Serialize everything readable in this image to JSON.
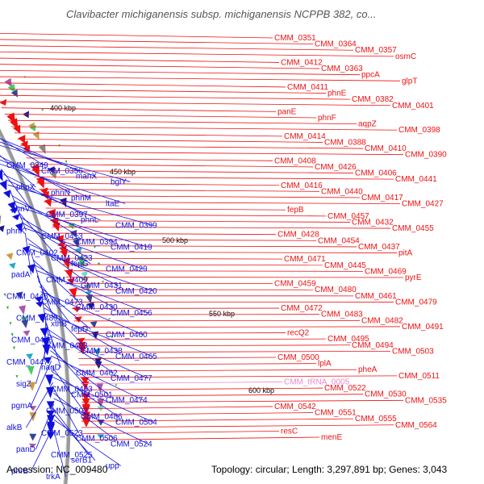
{
  "title": "Clavibacter michiganensis subsp. michiganensis NCPPB 382, co...",
  "footer": {
    "accession": "Accession: NC_009480",
    "topology": "Topology: circular; Length: 3,297,891 bp; Genes: 3,043"
  },
  "colors": {
    "forward": "#ee1111",
    "reverse": "#1111dd",
    "rna": "#ee88cc",
    "backbone": "#999999"
  },
  "kbp_labels": [
    "400 kbp",
    "450 kbp",
    "500 kbp",
    "550 kbp",
    "600 kbp"
  ],
  "right_labels": [
    {
      "t": "CMM_0351",
      "c": "r"
    },
    {
      "t": "CMM_0364",
      "c": "r"
    },
    {
      "t": "CMM_0357",
      "c": "r"
    },
    {
      "t": "osmC",
      "c": "r"
    },
    {
      "t": "CMM_0412",
      "c": "r"
    },
    {
      "t": "CMM_0363",
      "c": "r"
    },
    {
      "t": "ppcA",
      "c": "r"
    },
    {
      "t": "glpT",
      "c": "r"
    },
    {
      "t": "CMM_0411",
      "c": "r"
    },
    {
      "t": "phnE",
      "c": "r"
    },
    {
      "t": "CMM_0382",
      "c": "r"
    },
    {
      "t": "CMM_0401",
      "c": "r"
    },
    {
      "t": "panE",
      "c": "r"
    },
    {
      "t": "phnF",
      "c": "r"
    },
    {
      "t": "aqpZ",
      "c": "r"
    },
    {
      "t": "CMM_0398",
      "c": "r"
    },
    {
      "t": "CMM_0414",
      "c": "r"
    },
    {
      "t": "CMM_0388",
      "c": "r"
    },
    {
      "t": "CMM_0410",
      "c": "r"
    },
    {
      "t": "CMM_0390",
      "c": "r"
    },
    {
      "t": "CMM_0408",
      "c": "r"
    },
    {
      "t": "CMM_0426",
      "c": "r"
    },
    {
      "t": "CMM_0406",
      "c": "r"
    },
    {
      "t": "CMM_0441",
      "c": "r"
    },
    {
      "t": "CMM_0416",
      "c": "r"
    },
    {
      "t": "CMM_0440",
      "c": "r"
    },
    {
      "t": "CMM_0417",
      "c": "r"
    },
    {
      "t": "CMM_0427",
      "c": "r"
    },
    {
      "t": "fepB",
      "c": "r"
    },
    {
      "t": "CMM_0457",
      "c": "r"
    },
    {
      "t": "CMM_0432",
      "c": "r"
    },
    {
      "t": "CMM_0455",
      "c": "r"
    },
    {
      "t": "CMM_0428",
      "c": "r"
    },
    {
      "t": "CMM_0454",
      "c": "r"
    },
    {
      "t": "CMM_0437",
      "c": "r"
    },
    {
      "t": "pitA",
      "c": "r"
    },
    {
      "t": "CMM_0471",
      "c": "r"
    },
    {
      "t": "CMM_0445",
      "c": "r"
    },
    {
      "t": "CMM_0469",
      "c": "r"
    },
    {
      "t": "pyrE",
      "c": "r"
    },
    {
      "t": "CMM_0459",
      "c": "r"
    },
    {
      "t": "CMM_0480",
      "c": "r"
    },
    {
      "t": "CMM_0461",
      "c": "r"
    },
    {
      "t": "CMM_0479",
      "c": "r"
    },
    {
      "t": "CMM_0472",
      "c": "r"
    },
    {
      "t": "CMM_0483",
      "c": "r"
    },
    {
      "t": "CMM_0482",
      "c": "r"
    },
    {
      "t": "CMM_0491",
      "c": "r"
    },
    {
      "t": "recQ2",
      "c": "r"
    },
    {
      "t": "CMM_0495",
      "c": "r"
    },
    {
      "t": "CMM_0494",
      "c": "r"
    },
    {
      "t": "CMM_0503",
      "c": "r"
    },
    {
      "t": "CMM_0500",
      "c": "r"
    },
    {
      "t": "lplA",
      "c": "r"
    },
    {
      "t": "pheA",
      "c": "r"
    },
    {
      "t": "CMM_0511",
      "c": "r"
    },
    {
      "t": "CMM_tRNA_0005",
      "c": "p"
    },
    {
      "t": "CMM_0522",
      "c": "r"
    },
    {
      "t": "CMM_0530",
      "c": "r"
    },
    {
      "t": "CMM_0535",
      "c": "r"
    },
    {
      "t": "CMM_0542",
      "c": "r"
    },
    {
      "t": "CMM_0551",
      "c": "r"
    },
    {
      "t": "CMM_0555",
      "c": "r"
    },
    {
      "t": "CMM_0564",
      "c": "r"
    },
    {
      "t": "resC",
      "c": "r"
    },
    {
      "t": "menE",
      "c": "r"
    }
  ],
  "left_labels": [
    "CMM_0349",
    "CMM_0356",
    "manX",
    "bglY",
    "phnX",
    "phnN",
    "phnM",
    "ltaE",
    "phnV",
    "CMM_0397",
    "phnL",
    "CMM_0399",
    "phnK",
    "CMM_0413",
    "CMM_0394",
    "CMM_0419",
    "CMM_0402",
    "CMM_0423",
    "fepG",
    "CMM_0429",
    "padA",
    "CMM_0409",
    "CMM_0431",
    "CMM_0420",
    "CMM_0446",
    "CMM_0473",
    "CMM_0430",
    "CMM_0456",
    "CMM_0489",
    "xthB",
    "fepD",
    "CMM_0460",
    "CMM_0476",
    "CMM_0493",
    "CMM_0438",
    "CMM_0465",
    "CMM_0447",
    "nagD",
    "CMM_0462",
    "CMM_0477",
    "sigZ",
    "CMM_0463",
    "CMM_0501",
    "CMM_0474",
    "pgmA",
    "CMM_0502",
    "CMM_0486",
    "CMM_0504",
    "alkB",
    "CMM_0523",
    "CMM_0506",
    "CMM_0524",
    "panD",
    "CMM_0525",
    "serB1",
    "upp",
    "phrB",
    "trkA"
  ]
}
